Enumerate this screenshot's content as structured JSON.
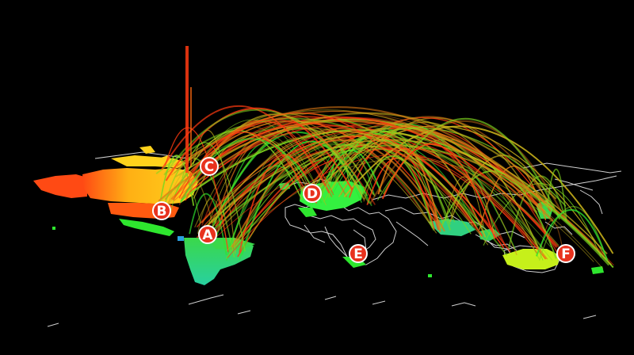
{
  "map": {
    "background": "#000000",
    "coastline_color": "#cfcfcf",
    "marker_fill": "#e8321e",
    "markers": [
      {
        "label": "A"
      },
      {
        "label": "B"
      },
      {
        "label": "C"
      },
      {
        "label": "D"
      },
      {
        "label": "E"
      },
      {
        "label": "F"
      }
    ],
    "arc_color_scale": [
      "#2ee62e",
      "#7fd61e",
      "#c8b01a",
      "#e07a14",
      "#ff3a10"
    ]
  }
}
